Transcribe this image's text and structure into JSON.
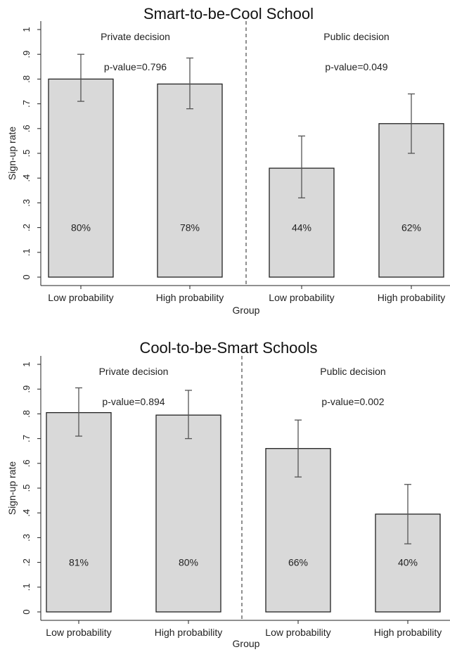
{
  "chart_data": [
    {
      "type": "bar",
      "title": "Smart-to-be-Cool School",
      "xlabel": "Group",
      "ylabel": "Sign-up rate",
      "ylim": [
        0,
        1
      ],
      "yticks": [
        "0",
        ".1",
        ".2",
        ".3",
        ".4",
        ".5",
        ".6",
        ".7",
        ".8",
        ".9",
        "1"
      ],
      "categories": [
        "Low probability",
        "High probability",
        "Low probability",
        "High probability"
      ],
      "panels": [
        {
          "name": "Private decision",
          "pvalue": "p-value=0.796"
        },
        {
          "name": "Public decision",
          "pvalue": "p-value=0.049"
        }
      ],
      "values": [
        0.8,
        0.78,
        0.44,
        0.62
      ],
      "value_labels": [
        "80%",
        "78%",
        "44%",
        "62%"
      ],
      "ci_low": [
        0.71,
        0.68,
        0.32,
        0.5
      ],
      "ci_high": [
        0.9,
        0.885,
        0.57,
        0.74
      ]
    },
    {
      "type": "bar",
      "title": "Cool-to-be-Smart Schools",
      "xlabel": "Group",
      "ylabel": "Sign-up rate",
      "ylim": [
        0,
        1
      ],
      "yticks": [
        "0",
        ".1",
        ".2",
        ".3",
        ".4",
        ".5",
        ".6",
        ".7",
        ".8",
        ".9",
        "1"
      ],
      "categories": [
        "Low probability",
        "High probability",
        "Low probability",
        "High probability"
      ],
      "panels": [
        {
          "name": "Private decision",
          "pvalue": "p-value=0.894"
        },
        {
          "name": "Public decision",
          "pvalue": "p-value=0.002"
        }
      ],
      "values": [
        0.805,
        0.795,
        0.66,
        0.395
      ],
      "value_labels": [
        "81%",
        "80%",
        "66%",
        "40%"
      ],
      "ci_low": [
        0.71,
        0.7,
        0.545,
        0.275
      ],
      "ci_high": [
        0.905,
        0.895,
        0.775,
        0.515
      ]
    }
  ]
}
